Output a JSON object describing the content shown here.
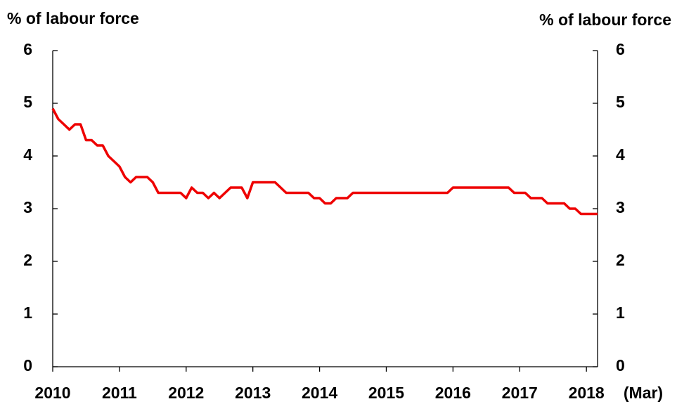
{
  "chart_data": {
    "type": "line",
    "y_label": "% of labour force",
    "y2_label": "% of labour force",
    "x_note": "(Mar)",
    "xlim": [
      2010,
      2018.167
    ],
    "xticks": [
      2010,
      2011,
      2012,
      2013,
      2014,
      2015,
      2016,
      2017,
      2018
    ],
    "ylim": [
      0,
      6
    ],
    "yticks": [
      0,
      1,
      2,
      3,
      4,
      5,
      6
    ],
    "y2lim": [
      0,
      6
    ],
    "y2ticks": [
      0,
      1,
      2,
      3,
      4,
      5,
      6
    ],
    "x": [
      2010,
      2010.083,
      2010.167,
      2010.25,
      2010.333,
      2010.417,
      2010.5,
      2010.583,
      2010.667,
      2010.75,
      2010.833,
      2010.917,
      2011,
      2011.083,
      2011.167,
      2011.25,
      2011.333,
      2011.417,
      2011.5,
      2011.583,
      2011.667,
      2011.75,
      2011.833,
      2011.917,
      2012,
      2012.083,
      2012.167,
      2012.25,
      2012.333,
      2012.417,
      2012.5,
      2012.583,
      2012.667,
      2012.75,
      2012.833,
      2012.917,
      2013,
      2013.083,
      2013.167,
      2013.25,
      2013.333,
      2013.417,
      2013.5,
      2013.583,
      2013.667,
      2013.75,
      2013.833,
      2013.917,
      2014,
      2014.083,
      2014.167,
      2014.25,
      2014.333,
      2014.417,
      2014.5,
      2014.583,
      2014.667,
      2014.75,
      2014.833,
      2014.917,
      2015,
      2015.083,
      2015.167,
      2015.25,
      2015.333,
      2015.417,
      2015.5,
      2015.583,
      2015.667,
      2015.75,
      2015.833,
      2015.917,
      2016,
      2016.083,
      2016.167,
      2016.25,
      2016.333,
      2016.417,
      2016.5,
      2016.583,
      2016.667,
      2016.75,
      2016.833,
      2016.917,
      2017,
      2017.083,
      2017.167,
      2017.25,
      2017.333,
      2017.417,
      2017.5,
      2017.583,
      2017.667,
      2017.75,
      2017.833,
      2017.917,
      2018,
      2018.083,
      2018.167
    ],
    "series": [
      {
        "color": "#ee0000",
        "values": [
          4.9,
          4.7,
          4.6,
          4.5,
          4.6,
          4.6,
          4.3,
          4.3,
          4.2,
          4.2,
          4.0,
          3.9,
          3.8,
          3.6,
          3.5,
          3.6,
          3.6,
          3.6,
          3.5,
          3.3,
          3.3,
          3.3,
          3.3,
          3.3,
          3.2,
          3.4,
          3.3,
          3.3,
          3.2,
          3.3,
          3.2,
          3.3,
          3.4,
          3.4,
          3.4,
          3.2,
          3.5,
          3.5,
          3.5,
          3.5,
          3.5,
          3.4,
          3.3,
          3.3,
          3.3,
          3.3,
          3.3,
          3.2,
          3.2,
          3.1,
          3.1,
          3.2,
          3.2,
          3.2,
          3.3,
          3.3,
          3.3,
          3.3,
          3.3,
          3.3,
          3.3,
          3.3,
          3.3,
          3.3,
          3.3,
          3.3,
          3.3,
          3.3,
          3.3,
          3.3,
          3.3,
          3.3,
          3.4,
          3.4,
          3.4,
          3.4,
          3.4,
          3.4,
          3.4,
          3.4,
          3.4,
          3.4,
          3.4,
          3.3,
          3.3,
          3.3,
          3.2,
          3.2,
          3.2,
          3.1,
          3.1,
          3.1,
          3.1,
          3.0,
          3.0,
          2.9,
          2.9,
          2.9,
          2.9
        ]
      }
    ]
  }
}
